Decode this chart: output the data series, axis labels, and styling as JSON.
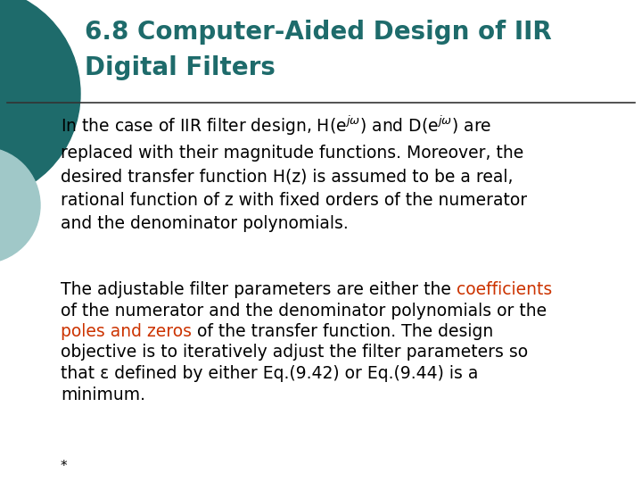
{
  "bg_color": "#ffffff",
  "title_line1": "6.8 Computer-Aided Design of IIR",
  "title_line2": "Digital Filters",
  "title_color": "#1e6b6b",
  "title_fontsize": 20,
  "body_fontsize": 13.5,
  "text_color": "#000000",
  "highlight_color": "#cc3300",
  "circle_color_dark": "#1e6b6b",
  "circle_color_light": "#a0c8c8",
  "footnote": "*",
  "para1_text": "In the case of IIR filter design, H(e$^{j\\omega}$) and D(e$^{j\\omega}$) are\nreplaced with their magnitude functions. Moreover, the\ndesired transfer function H(z) is assumed to be a real,\nrational function of z with fixed orders of the numerator\nand the denominator polynomials.",
  "para2_lines": [
    [
      {
        "text": "The adjustable filter parameters are either the ",
        "color": "#000000"
      },
      {
        "text": "coefficients",
        "color": "#cc3300"
      }
    ],
    [
      {
        "text": "of the numerator and the denominator polynomials or the",
        "color": "#000000"
      }
    ],
    [
      {
        "text": "poles and zeros",
        "color": "#cc3300"
      },
      {
        "text": " of the transfer function. The design",
        "color": "#000000"
      }
    ],
    [
      {
        "text": "objective is to iteratively adjust the filter parameters so",
        "color": "#000000"
      }
    ],
    [
      {
        "text": "that ε defined by either Eq.(9.42) or Eq.(9.44) is a",
        "color": "#000000"
      }
    ],
    [
      {
        "text": "minimum.",
        "color": "#000000"
      }
    ]
  ]
}
